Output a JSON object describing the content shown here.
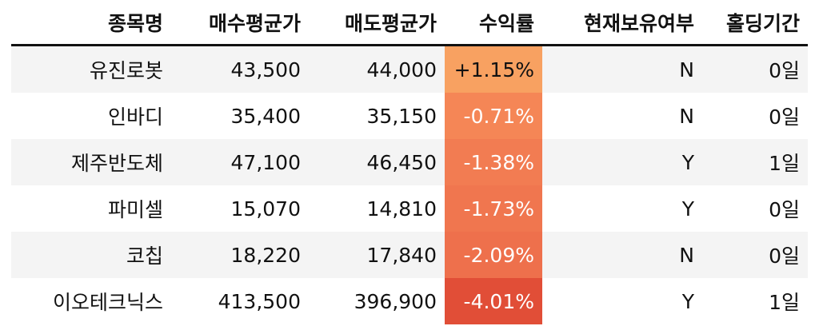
{
  "headers": {
    "name": "종목명",
    "buy_avg": "매수평균가",
    "sell_avg": "매도평균가",
    "return": "수익률",
    "holding": "현재보유여부",
    "days": "홀딩기간"
  },
  "rows": [
    {
      "name": "유진로봇",
      "buy_avg": "43,500",
      "sell_avg": "44,000",
      "return": "+1.15%",
      "holding": "N",
      "days": "0일",
      "return_color": "#f8a161"
    },
    {
      "name": "인바디",
      "buy_avg": "35,400",
      "sell_avg": "35,150",
      "return": "-0.71%",
      "holding": "N",
      "days": "0일",
      "return_color": "#f58656"
    },
    {
      "name": "제주반도체",
      "buy_avg": "47,100",
      "sell_avg": "46,450",
      "return": "-1.38%",
      "holding": "Y",
      "days": "1일",
      "return_color": "#f27c52"
    },
    {
      "name": "파미셀",
      "buy_avg": "15,070",
      "sell_avg": "14,810",
      "return": "-1.73%",
      "holding": "Y",
      "days": "0일",
      "return_color": "#f0764f"
    },
    {
      "name": "코칩",
      "buy_avg": "18,220",
      "sell_avg": "17,840",
      "return": "-2.09%",
      "holding": "N",
      "days": "0일",
      "return_color": "#ee704c"
    },
    {
      "name": "이오테크닉스",
      "buy_avg": "413,500",
      "sell_avg": "396,900",
      "return": "-4.01%",
      "holding": "Y",
      "days": "1일",
      "return_color": "#e14e37"
    }
  ]
}
